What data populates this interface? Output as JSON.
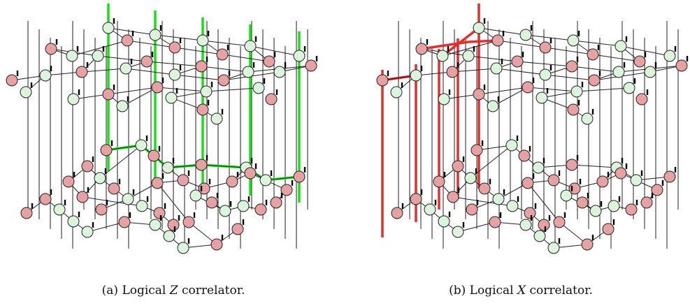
{
  "panels": [
    {
      "id": "a",
      "caption": {
        "tag": "(a)",
        "prefix": "Logical",
        "symbol": "Z",
        "suffix": "correlator."
      },
      "highlight": {
        "color": "#18e018",
        "pattern": "green vertical column lines joined by horizontal links"
      }
    },
    {
      "id": "b",
      "caption": {
        "tag": "(b)",
        "prefix": "Logical",
        "symbol": "X",
        "suffix": "correlator."
      },
      "highlight": {
        "color": "#e03030",
        "pattern": "red vertical lines on the left side joined by horizontal links"
      }
    }
  ],
  "node_colors": {
    "z_spider": "#dcf3dc",
    "x_spider": "#e6a2a2",
    "outline": "#222222",
    "edge": "#222222"
  }
}
